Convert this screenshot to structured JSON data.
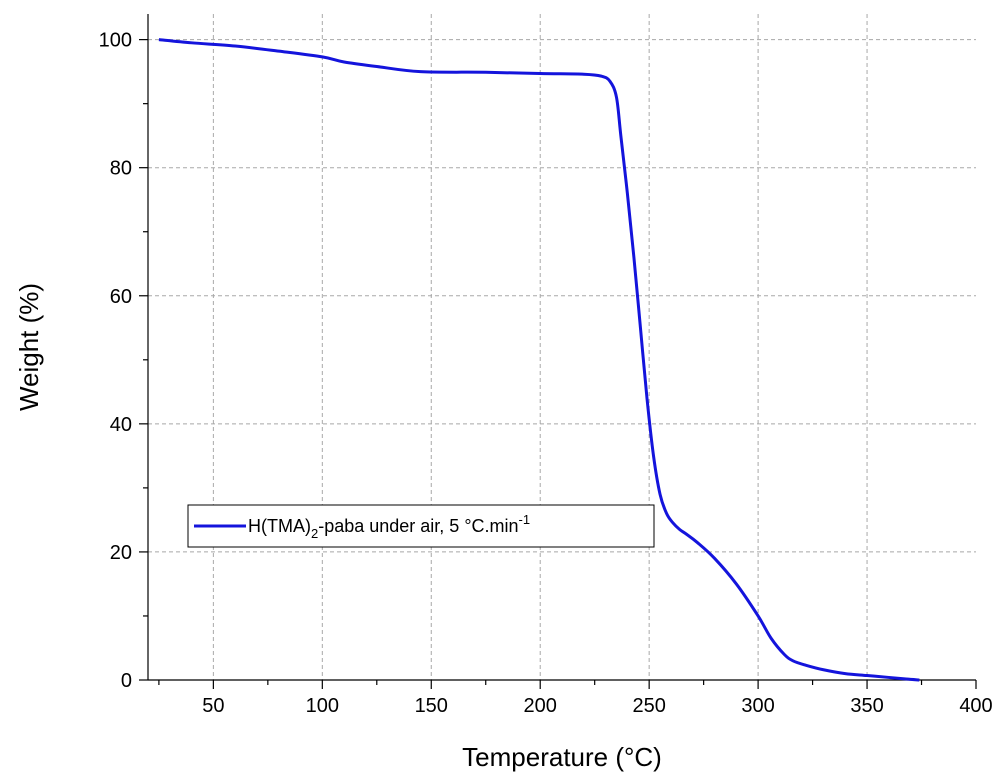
{
  "chart_data": {
    "type": "line",
    "xlabel": "Temperature (°C)",
    "ylabel": "Weight (%)",
    "xlim": [
      20,
      400
    ],
    "ylim": [
      0,
      104
    ],
    "xticks": [
      50,
      100,
      150,
      200,
      250,
      300,
      350,
      400
    ],
    "yticks": [
      0,
      20,
      40,
      60,
      80,
      100
    ],
    "grid": true,
    "legend_position": "lower-left",
    "colors": {
      "series": "#1414dc"
    },
    "series": [
      {
        "name": "H(TMA)2-paba under air, 5 °C.min-1",
        "legend": {
          "main": "H(TMA)",
          "sub": "2",
          "mid": "-paba under air, 5 °C.min",
          "sup": "-1"
        },
        "x": [
          25,
          40,
          60,
          80,
          100,
          110,
          125,
          145,
          175,
          200,
          220,
          228,
          232,
          235,
          237,
          240,
          243,
          246,
          249,
          252,
          255,
          258,
          261,
          264,
          267,
          272,
          280,
          290,
          300,
          306,
          312,
          316,
          322,
          330,
          340,
          350,
          360,
          368,
          374
        ],
        "y": [
          100,
          99.5,
          99,
          98.2,
          97.3,
          96.5,
          95.8,
          95.0,
          94.9,
          94.7,
          94.6,
          94.3,
          93.5,
          91,
          85,
          76,
          66,
          55,
          44,
          35,
          29,
          26,
          24.5,
          23.5,
          22.8,
          21.5,
          19,
          15,
          10,
          6.5,
          4,
          3,
          2.3,
          1.6,
          1.0,
          0.7,
          0.4,
          0.15,
          0
        ]
      }
    ]
  }
}
